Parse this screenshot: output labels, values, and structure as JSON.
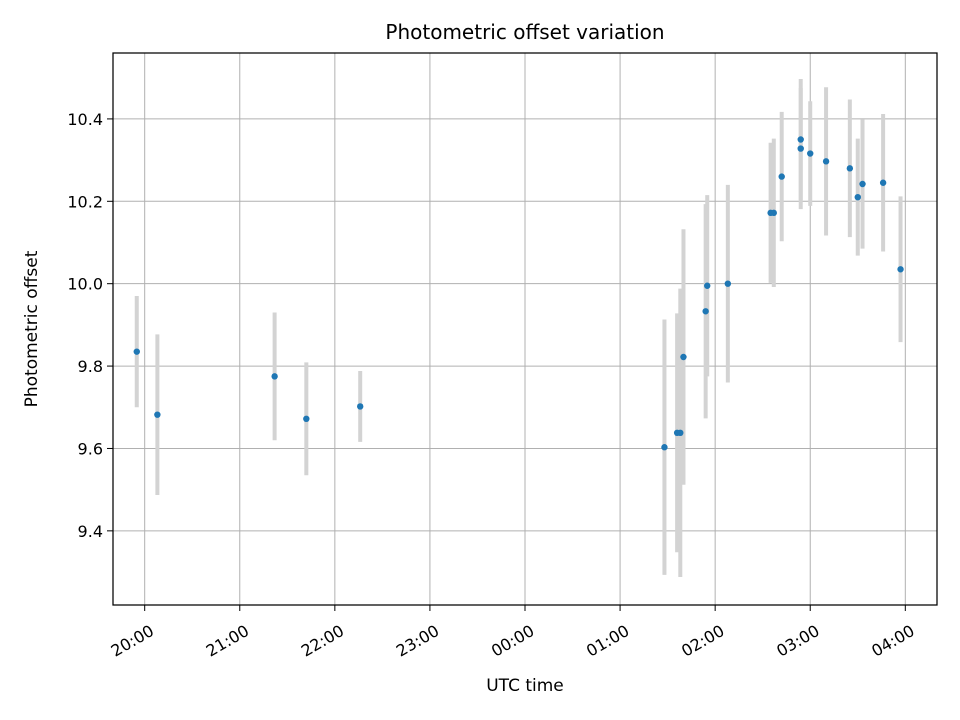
{
  "chart_data": {
    "type": "scatter",
    "title": "Photometric offset variation",
    "xlabel": "UTC time",
    "ylabel": "Photometric offset",
    "grid": true,
    "xlim": [
      "19:40",
      "04:20"
    ],
    "ylim": [
      9.22,
      10.56
    ],
    "x_ticks": [
      "20:00",
      "21:00",
      "22:00",
      "23:00",
      "00:00",
      "01:00",
      "02:00",
      "03:00",
      "04:00"
    ],
    "y_ticks": [
      "9.4",
      "9.6",
      "9.8",
      "10.0",
      "10.2",
      "10.4"
    ],
    "marker_color": "#1f77b4",
    "errorbar_color": "#d3d3d3",
    "points": [
      {
        "x": "19:55",
        "y": 9.835,
        "yerr": 0.135
      },
      {
        "x": "20:08",
        "y": 9.682,
        "yerr": 0.195
      },
      {
        "x": "21:22",
        "y": 9.775,
        "yerr": 0.155
      },
      {
        "x": "21:42",
        "y": 9.672,
        "yerr": 0.137
      },
      {
        "x": "22:16",
        "y": 9.702,
        "yerr": 0.086
      },
      {
        "x": "01:28",
        "y": 9.603,
        "yerr": 0.31
      },
      {
        "x": "01:36",
        "y": 9.638,
        "yerr": 0.29
      },
      {
        "x": "01:38",
        "y": 9.638,
        "yerr": 0.35
      },
      {
        "x": "01:40",
        "y": 9.822,
        "yerr": 0.31
      },
      {
        "x": "01:54",
        "y": 9.933,
        "yerr": 0.26
      },
      {
        "x": "01:55",
        "y": 9.995,
        "yerr": 0.22
      },
      {
        "x": "02:08",
        "y": 10.0,
        "yerr": 0.24
      },
      {
        "x": "02:35",
        "y": 10.172,
        "yerr": 0.17
      },
      {
        "x": "02:37",
        "y": 10.172,
        "yerr": 0.18
      },
      {
        "x": "02:42",
        "y": 10.26,
        "yerr": 0.157
      },
      {
        "x": "02:54",
        "y": 10.35,
        "yerr": 0.147
      },
      {
        "x": "02:54",
        "y": 10.328,
        "yerr": 0.147
      },
      {
        "x": "03:00",
        "y": 10.316,
        "yerr": 0.127
      },
      {
        "x": "03:10",
        "y": 10.297,
        "yerr": 0.18
      },
      {
        "x": "03:25",
        "y": 10.28,
        "yerr": 0.167
      },
      {
        "x": "03:30",
        "y": 10.21,
        "yerr": 0.142
      },
      {
        "x": "03:33",
        "y": 10.242,
        "yerr": 0.157
      },
      {
        "x": "03:46",
        "y": 10.245,
        "yerr": 0.167
      },
      {
        "x": "03:57",
        "y": 10.035,
        "yerr": 0.177
      }
    ]
  }
}
